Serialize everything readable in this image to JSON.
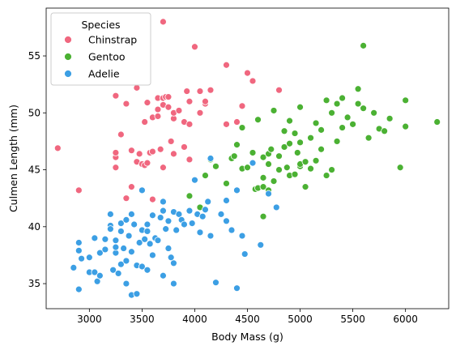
{
  "chart_data": {
    "type": "scatter",
    "xlabel": "Body Mass (g)",
    "ylabel": "Culmen Length (mm)",
    "xlim": [
      2590,
      6410
    ],
    "ylim": [
      32.8,
      59.2
    ],
    "xticks": [
      3000,
      3500,
      4000,
      4500,
      5000,
      5500,
      6000
    ],
    "yticks": [
      35,
      40,
      45,
      50,
      55
    ],
    "grid": false,
    "legend": {
      "title": "Species",
      "placement": "top-left"
    },
    "series": [
      {
        "name": "Chinstrap",
        "color": "#f0677f",
        "points": [
          [
            2700,
            46.9
          ],
          [
            2900,
            43.2
          ],
          [
            3250,
            45.2
          ],
          [
            3250,
            46.1
          ],
          [
            3250,
            46.5
          ],
          [
            3250,
            51.5
          ],
          [
            3300,
            48.1
          ],
          [
            3350,
            42.5
          ],
          [
            3400,
            43.5
          ],
          [
            3400,
            46.7
          ],
          [
            3450,
            45.7
          ],
          [
            3450,
            52.2
          ],
          [
            3475,
            46.4
          ],
          [
            3500,
            45.5
          ],
          [
            3525,
            45.4
          ],
          [
            3525,
            49.2
          ],
          [
            3550,
            50.9
          ],
          [
            3550,
            45.6
          ],
          [
            3575,
            46.5
          ],
          [
            3600,
            46.6
          ],
          [
            3600,
            49.6
          ],
          [
            3600,
            42.4
          ],
          [
            3650,
            49.7
          ],
          [
            3650,
            51.3
          ],
          [
            3650,
            50.3
          ],
          [
            3675,
            46.8
          ],
          [
            3700,
            58.0
          ],
          [
            3700,
            51.3
          ],
          [
            3700,
            50.7
          ],
          [
            3725,
            51.4
          ],
          [
            3750,
            50.5
          ],
          [
            3750,
            51.4
          ],
          [
            3775,
            47.5
          ],
          [
            3800,
            49.5
          ],
          [
            3800,
            50.0
          ],
          [
            3800,
            46.4
          ],
          [
            3850,
            50.2
          ],
          [
            3900,
            47.0
          ],
          [
            3900,
            49.2
          ],
          [
            3925,
            51.9
          ],
          [
            3950,
            49.0
          ],
          [
            3950,
            51.0
          ],
          [
            3950,
            45.9
          ],
          [
            4000,
            55.8
          ],
          [
            4050,
            51.9
          ],
          [
            4050,
            50.0
          ],
          [
            4100,
            50.8
          ],
          [
            4100,
            51.0
          ],
          [
            4150,
            52.0
          ],
          [
            4300,
            54.2
          ],
          [
            4300,
            49.0
          ],
          [
            4400,
            49.2
          ],
          [
            4450,
            50.6
          ],
          [
            4500,
            53.5
          ],
          [
            4550,
            52.8
          ],
          [
            4800,
            52.0
          ],
          [
            4150,
            46.0
          ],
          [
            3350,
            50.8
          ],
          [
            3700,
            45.2
          ]
        ]
      },
      {
        "name": "Gentoo",
        "color": "#4bb133",
        "points": [
          [
            3950,
            42.7
          ],
          [
            4050,
            41.7
          ],
          [
            4100,
            44.5
          ],
          [
            4150,
            45.9
          ],
          [
            4200,
            45.3
          ],
          [
            4300,
            43.8
          ],
          [
            4350,
            46.0
          ],
          [
            4375,
            46.2
          ],
          [
            4400,
            47.2
          ],
          [
            4450,
            48.7
          ],
          [
            4450,
            45.1
          ],
          [
            4500,
            45.2
          ],
          [
            4550,
            46.5
          ],
          [
            4575,
            43.3
          ],
          [
            4600,
            43.4
          ],
          [
            4600,
            49.4
          ],
          [
            4650,
            40.9
          ],
          [
            4650,
            46.1
          ],
          [
            4650,
            43.5
          ],
          [
            4700,
            46.4
          ],
          [
            4700,
            45.5
          ],
          [
            4700,
            43.2
          ],
          [
            4725,
            46.8
          ],
          [
            4750,
            50.2
          ],
          [
            4750,
            44.0
          ],
          [
            4800,
            46.2
          ],
          [
            4800,
            45.0
          ],
          [
            4850,
            47.0
          ],
          [
            4850,
            48.4
          ],
          [
            4875,
            45.2
          ],
          [
            4900,
            49.3
          ],
          [
            4900,
            47.3
          ],
          [
            4950,
            48.2
          ],
          [
            4975,
            46.5
          ],
          [
            5000,
            45.3
          ],
          [
            5000,
            50.5
          ],
          [
            5000,
            45.5
          ],
          [
            5000,
            47.4
          ],
          [
            5050,
            43.5
          ],
          [
            5050,
            45.7
          ],
          [
            5100,
            45.1
          ],
          [
            5100,
            47.8
          ],
          [
            5150,
            49.1
          ],
          [
            5200,
            46.8
          ],
          [
            5200,
            48.5
          ],
          [
            5250,
            51.1
          ],
          [
            5250,
            44.5
          ],
          [
            5300,
            50.0
          ],
          [
            5350,
            47.5
          ],
          [
            5350,
            50.8
          ],
          [
            5400,
            48.7
          ],
          [
            5400,
            51.3
          ],
          [
            5450,
            49.6
          ],
          [
            5500,
            49.0
          ],
          [
            5550,
            50.8
          ],
          [
            5550,
            52.1
          ],
          [
            5600,
            55.9
          ],
          [
            5650,
            47.8
          ],
          [
            5700,
            50.0
          ],
          [
            5750,
            48.6
          ],
          [
            5800,
            48.4
          ],
          [
            5850,
            49.5
          ],
          [
            5950,
            45.2
          ],
          [
            6000,
            51.1
          ],
          [
            6000,
            48.8
          ],
          [
            6300,
            49.2
          ],
          [
            4900,
            44.5
          ],
          [
            5300,
            45.0
          ],
          [
            4950,
            44.6
          ],
          [
            5150,
            45.8
          ],
          [
            4650,
            44.3
          ],
          [
            5600,
            50.4
          ]
        ]
      },
      {
        "name": "Adelie",
        "color": "#3c9fe4",
        "points": [
          [
            2850,
            36.4
          ],
          [
            2900,
            34.5
          ],
          [
            2900,
            37.9
          ],
          [
            2900,
            38.6
          ],
          [
            2925,
            37.2
          ],
          [
            3000,
            36.0
          ],
          [
            3000,
            37.3
          ],
          [
            3050,
            39.0
          ],
          [
            3050,
            36.0
          ],
          [
            3075,
            35.2
          ],
          [
            3100,
            37.7
          ],
          [
            3100,
            35.7
          ],
          [
            3150,
            38.0
          ],
          [
            3150,
            38.9
          ],
          [
            3200,
            41.1
          ],
          [
            3200,
            40.1
          ],
          [
            3200,
            39.8
          ],
          [
            3225,
            36.2
          ],
          [
            3250,
            38.8
          ],
          [
            3250,
            37.7
          ],
          [
            3275,
            35.9
          ],
          [
            3300,
            36.7
          ],
          [
            3300,
            40.3
          ],
          [
            3300,
            39.6
          ],
          [
            3325,
            38.1
          ],
          [
            3350,
            35.0
          ],
          [
            3350,
            40.6
          ],
          [
            3350,
            37.0
          ],
          [
            3375,
            39.2
          ],
          [
            3400,
            34.0
          ],
          [
            3400,
            41.1
          ],
          [
            3400,
            37.8
          ],
          [
            3425,
            40.2
          ],
          [
            3450,
            36.6
          ],
          [
            3450,
            34.1
          ],
          [
            3475,
            38.6
          ],
          [
            3500,
            36.5
          ],
          [
            3500,
            39.7
          ],
          [
            3500,
            43.2
          ],
          [
            3525,
            38.9
          ],
          [
            3550,
            39.6
          ],
          [
            3550,
            40.2
          ],
          [
            3575,
            38.5
          ],
          [
            3600,
            41.0
          ],
          [
            3600,
            37.5
          ],
          [
            3625,
            39.0
          ],
          [
            3650,
            38.8
          ],
          [
            3675,
            40.8
          ],
          [
            3700,
            41.4
          ],
          [
            3700,
            35.7
          ],
          [
            3725,
            39.8
          ],
          [
            3750,
            40.5
          ],
          [
            3750,
            38.1
          ],
          [
            3775,
            37.3
          ],
          [
            3800,
            41.3
          ],
          [
            3800,
            35.0
          ],
          [
            3825,
            39.7
          ],
          [
            3850,
            41.1
          ],
          [
            3875,
            40.6
          ],
          [
            3900,
            40.2
          ],
          [
            3950,
            41.4
          ],
          [
            3975,
            40.3
          ],
          [
            4000,
            44.1
          ],
          [
            4025,
            41.1
          ],
          [
            4050,
            39.5
          ],
          [
            4075,
            40.9
          ],
          [
            4100,
            41.5
          ],
          [
            4125,
            42.2
          ],
          [
            4150,
            39.2
          ],
          [
            4200,
            35.1
          ],
          [
            4250,
            41.1
          ],
          [
            4300,
            40.5
          ],
          [
            4350,
            39.7
          ],
          [
            4400,
            43.2
          ],
          [
            4400,
            34.6
          ],
          [
            4450,
            39.2
          ],
          [
            4475,
            37.6
          ],
          [
            4550,
            45.6
          ],
          [
            4625,
            38.4
          ],
          [
            4700,
            42.9
          ],
          [
            4775,
            41.7
          ],
          [
            4150,
            46.0
          ],
          [
            3700,
            42.2
          ],
          [
            3250,
            38.2
          ],
          [
            3550,
            36.2
          ],
          [
            3800,
            36.8
          ],
          [
            4300,
            42.3
          ]
        ]
      }
    ]
  }
}
